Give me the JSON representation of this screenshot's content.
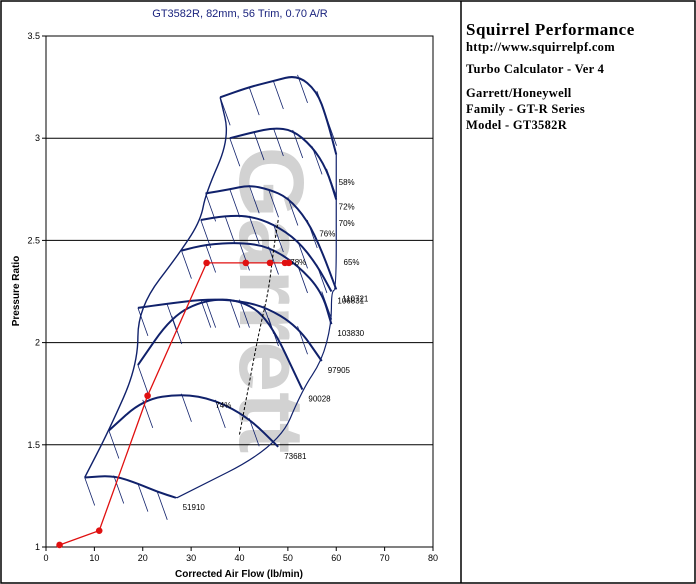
{
  "info": {
    "brand": "Squirrel Performance",
    "url": "http://www.squirrelpf.com",
    "calculator": "Turbo Calculator - Ver 4",
    "manufacturer": "Garrett/Honeywell",
    "family": "Family - GT-R Series",
    "model": "Model - GT3582R"
  },
  "watermark": "Garrett",
  "chart_data": {
    "type": "scatter",
    "title": "GT3582R, 82mm, 56 Trim, 0.70 A/R",
    "xlabel": "Corrected Air Flow (lb/min)",
    "ylabel": "Pressure Ratio",
    "xlim": [
      0,
      80
    ],
    "ylim": [
      1,
      3.5
    ],
    "xticks": [
      "0",
      "10",
      "20",
      "30",
      "40",
      "50",
      "60",
      "70",
      "80"
    ],
    "yticks": [
      "1",
      "1.5",
      "2",
      "2.5",
      "3",
      "3.5"
    ],
    "grid": "horizontal",
    "operating_points": {
      "x": [
        2.8,
        11,
        21,
        33.2,
        41.3,
        46.3,
        49.4,
        50.2
      ],
      "y": [
        1.01,
        1.08,
        1.74,
        2.39,
        2.39,
        2.39,
        2.39,
        2.39
      ],
      "color": "#e01010"
    },
    "speed_lines": [
      {
        "label": "51910",
        "x": [
          8,
          14,
          19,
          23,
          27
        ],
        "y": [
          1.34,
          1.35,
          1.31,
          1.27,
          1.24
        ]
      },
      {
        "label": "73681",
        "x": [
          13,
          20,
          28,
          35,
          42,
          48
        ],
        "y": [
          1.57,
          1.72,
          1.75,
          1.72,
          1.63,
          1.49
        ]
      },
      {
        "label": "90028",
        "x": [
          19,
          26,
          33,
          40,
          46,
          53
        ],
        "y": [
          1.89,
          2.13,
          2.21,
          2.21,
          2.12,
          1.77
        ]
      },
      {
        "label": "97905",
        "x": [
          19,
          25,
          32,
          38,
          45,
          52,
          57
        ],
        "y": [
          2.17,
          2.19,
          2.21,
          2.21,
          2.18,
          2.08,
          1.91
        ]
      },
      {
        "label": "103830",
        "x": [
          28,
          33,
          40,
          46,
          52,
          57,
          59
        ],
        "y": [
          2.45,
          2.48,
          2.49,
          2.47,
          2.38,
          2.25,
          2.09
        ]
      },
      {
        "label": "106831",
        "x": [
          32,
          37,
          42,
          47,
          52,
          56,
          59
        ],
        "y": [
          2.6,
          2.62,
          2.62,
          2.58,
          2.5,
          2.38,
          2.25
        ]
      },
      {
        "label": "110721",
        "x": [
          33,
          38,
          42,
          46,
          50,
          54,
          57,
          60
        ],
        "y": [
          2.73,
          2.75,
          2.77,
          2.75,
          2.71,
          2.6,
          2.45,
          2.26
        ]
      },
      {
        "label": "",
        "x": [
          38,
          43,
          47,
          51,
          55,
          58,
          60
        ],
        "y": [
          3.0,
          3.03,
          3.05,
          3.04,
          2.96,
          2.85,
          2.7
        ]
      },
      {
        "label": "",
        "x": [
          36,
          42,
          47,
          52,
          56,
          58,
          60
        ],
        "y": [
          3.2,
          3.25,
          3.28,
          3.31,
          3.23,
          3.1,
          2.92
        ]
      }
    ],
    "efficiency_labels": [
      {
        "label": "58%",
        "x": 60.5,
        "y": 2.77
      },
      {
        "label": "72%",
        "x": 60.5,
        "y": 2.65
      },
      {
        "label": "70%",
        "x": 60.5,
        "y": 2.57
      },
      {
        "label": "76%",
        "x": 56.5,
        "y": 2.52
      },
      {
        "label": "65%",
        "x": 61.5,
        "y": 2.38
      },
      {
        "label": "78%",
        "x": 50.5,
        "y": 2.38
      },
      {
        "label": "74%",
        "x": 35,
        "y": 1.68
      }
    ],
    "colors": {
      "speed_line": "#10216b",
      "operating_line": "#e01010",
      "grid": "#000000",
      "title": "#1a237e"
    }
  }
}
